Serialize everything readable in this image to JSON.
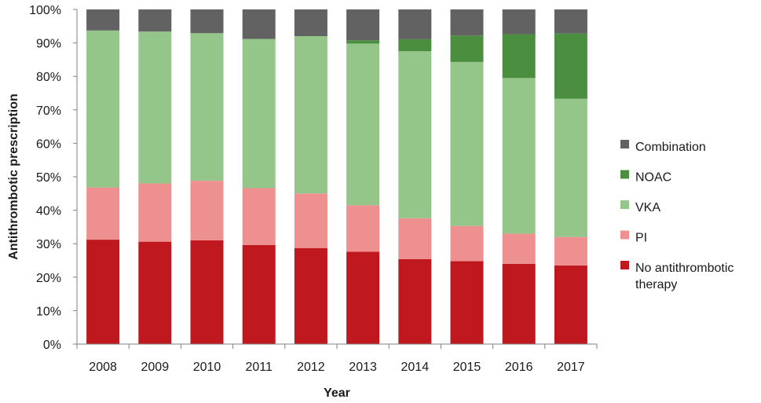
{
  "chart_data": {
    "type": "bar",
    "stacked": true,
    "percent": true,
    "xlabel": "Year",
    "ylabel": "Antithrombotic prescription",
    "categories": [
      "2008",
      "2009",
      "2010",
      "2011",
      "2012",
      "2013",
      "2014",
      "2015",
      "2016",
      "2017"
    ],
    "y_ticks": [
      "0%",
      "10%",
      "20%",
      "30%",
      "40%",
      "50%",
      "60%",
      "70%",
      "80%",
      "90%",
      "100%"
    ],
    "ylim": [
      0,
      100
    ],
    "grid": false,
    "legend_position": "right",
    "series": [
      {
        "name": "No antithrombotic therapy",
        "color": "#c0181f",
        "values": [
          31.2,
          30.6,
          31.0,
          29.6,
          28.7,
          27.6,
          25.4,
          24.8,
          24.0,
          23.5
        ]
      },
      {
        "name": "PI",
        "color": "#ee9090",
        "values": [
          15.6,
          17.4,
          17.8,
          17.0,
          16.3,
          13.9,
          12.2,
          10.5,
          9.0,
          8.5
        ]
      },
      {
        "name": "VKA",
        "color": "#94c68a",
        "values": [
          46.9,
          45.4,
          44.1,
          44.6,
          47.0,
          48.3,
          49.9,
          49.0,
          46.5,
          41.3
        ]
      },
      {
        "name": "NOAC",
        "color": "#4b8e3f",
        "values": [
          0.0,
          0.0,
          0.0,
          0.0,
          0.0,
          1.0,
          3.6,
          7.9,
          13.1,
          19.5
        ]
      },
      {
        "name": "Combination",
        "color": "#626262",
        "values": [
          6.3,
          6.6,
          7.1,
          8.8,
          8.0,
          9.2,
          8.9,
          7.8,
          7.4,
          7.2
        ]
      }
    ],
    "legend": [
      {
        "name_lines": [
          "Combination"
        ],
        "color": "#626262"
      },
      {
        "name_lines": [
          "NOAC"
        ],
        "color": "#4b8e3f"
      },
      {
        "name_lines": [
          "VKA"
        ],
        "color": "#94c68a"
      },
      {
        "name_lines": [
          "PI"
        ],
        "color": "#ee9090"
      },
      {
        "name_lines": [
          "No antithrombotic",
          "therapy"
        ],
        "color": "#c0181f"
      }
    ]
  }
}
